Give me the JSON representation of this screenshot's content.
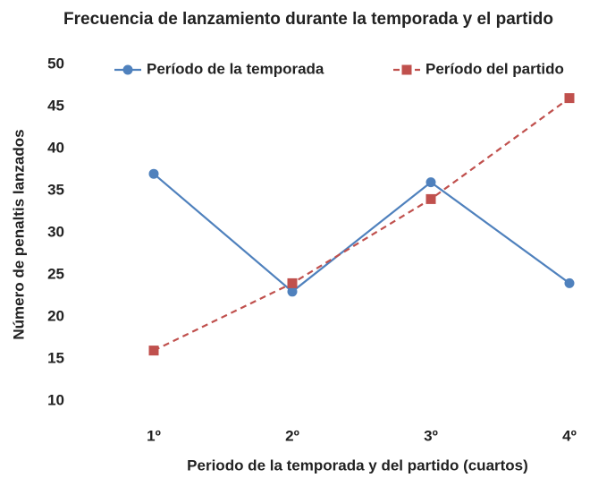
{
  "chart_data": {
    "type": "line",
    "title": "Frecuencia de lanzamiento durante la temporada y el partido",
    "x_label": "Periodo de la temporada y del partido (cuartos)",
    "y_label": "Número de penaltis lanzados",
    "categories": [
      "1º",
      "2º",
      "3º",
      "4º"
    ],
    "series": [
      {
        "name": "Período de la temporada",
        "color": "#4f81bd",
        "line_style": "solid",
        "marker": "circle",
        "values": [
          37,
          23,
          36,
          24
        ]
      },
      {
        "name": "Período del partido",
        "color": "#c0504d",
        "line_style": "dashed",
        "marker": "square",
        "values": [
          16,
          24,
          34,
          46
        ]
      }
    ],
    "ylim": [
      10,
      50
    ],
    "yticks": [
      10,
      15,
      20,
      25,
      30,
      35,
      40,
      45,
      50
    ],
    "grid": false,
    "legend": "top"
  }
}
